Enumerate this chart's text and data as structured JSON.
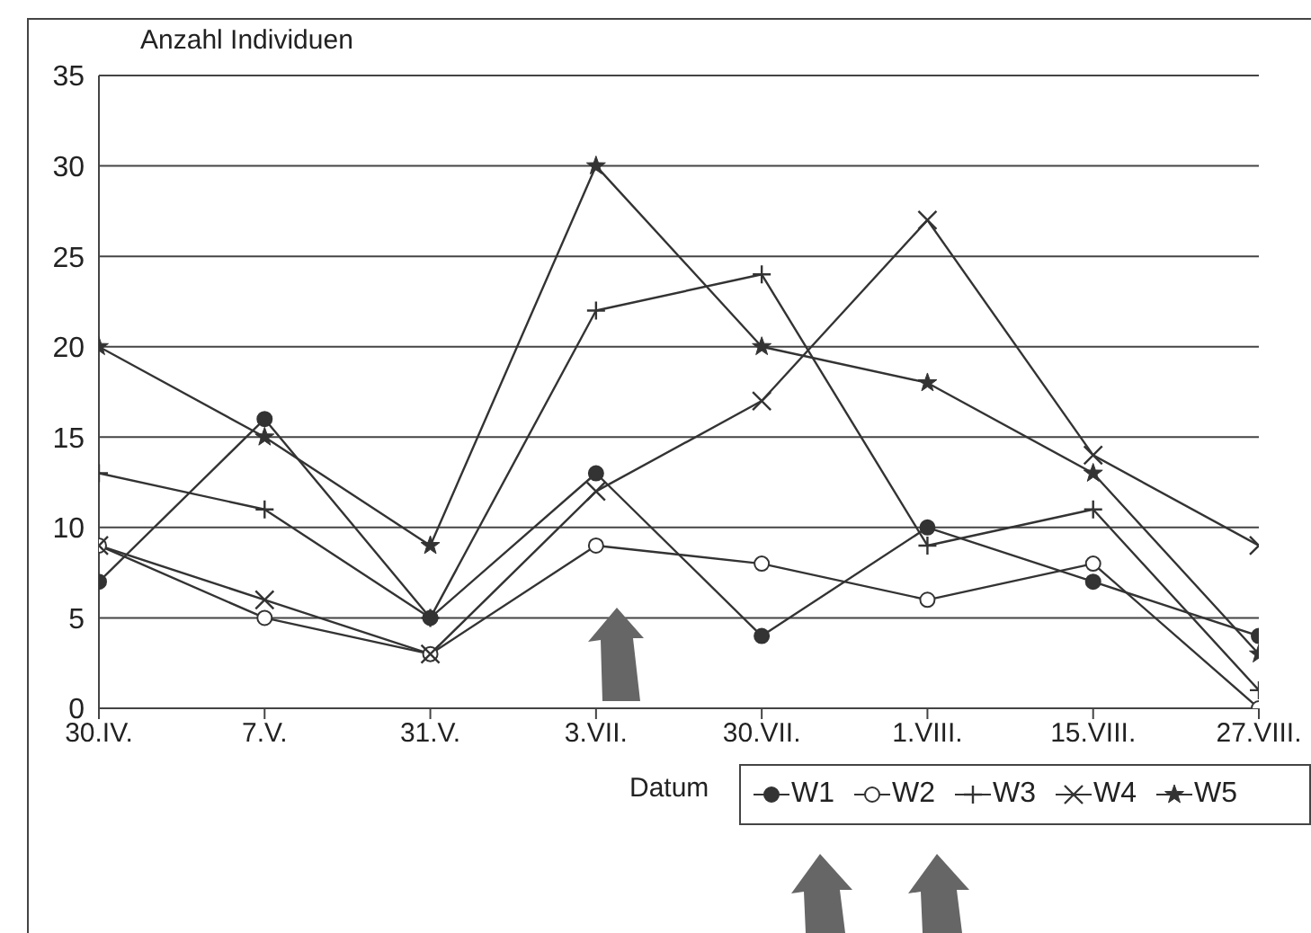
{
  "chart_data": {
    "type": "line",
    "ylabel": "Anzahl Individuen",
    "xlabel": "Datum",
    "categories": [
      "30.IV.",
      "7.V.",
      "31.V.",
      "3.VII.",
      "30.VII.",
      "1.VIII.",
      "15.VIII.",
      "27.VIII."
    ],
    "series": [
      {
        "name": "W1",
        "color": "#333333",
        "marker": "circle",
        "values": [
          7,
          16,
          5,
          13,
          4,
          10,
          7,
          4
        ]
      },
      {
        "name": "W2",
        "color": "#333333",
        "marker": "circle",
        "values": [
          9,
          5,
          3,
          9,
          8,
          6,
          8,
          0
        ]
      },
      {
        "name": "W3",
        "color": "#333333",
        "marker": "cross",
        "values": [
          13,
          11,
          5,
          22,
          24,
          9,
          11,
          1
        ]
      },
      {
        "name": "W4",
        "color": "#333333",
        "marker": "x",
        "values": [
          9,
          6,
          3,
          12,
          17,
          27,
          14,
          9
        ]
      },
      {
        "name": "W5",
        "color": "#333333",
        "marker": "star",
        "values": [
          20,
          15,
          9,
          30,
          20,
          18,
          13,
          3
        ]
      }
    ],
    "ylim": [
      0,
      35
    ],
    "yticks": [
      0,
      5,
      10,
      15,
      20,
      25,
      30,
      35
    ],
    "grid": "y",
    "legend": "bottom right",
    "line_style": "solid"
  }
}
